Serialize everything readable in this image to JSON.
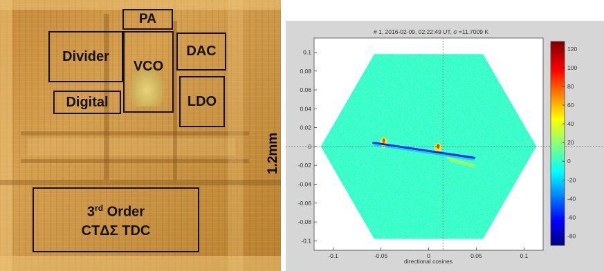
{
  "die_photo": {
    "blocks": [
      {
        "id": "pa",
        "label": "PA"
      },
      {
        "id": "divider",
        "label": "Divider"
      },
      {
        "id": "vco",
        "label": "VCO"
      },
      {
        "id": "dac",
        "label": "DAC"
      },
      {
        "id": "digital",
        "label": "Digital"
      },
      {
        "id": "ldo",
        "label": "LDO"
      },
      {
        "id": "tdc",
        "label_line1_prefix": "3",
        "label_line1_sup": "rd",
        "label_line1_suffix": " Order",
        "label_line2": "CTΔΣ TDC"
      }
    ],
    "dimension_label": "1.2mm"
  },
  "plot": {
    "title": "# 1, 2016-02-09, 02:22:49 UT, σ =11.7009 K",
    "xlabel": "directional cosines"
  },
  "chart_data": {
    "type": "heatmap",
    "title": "# 1, 2016-02-09, 02:22:49 UT, σ =11.7009 K",
    "xlabel": "directional cosines",
    "ylabel": "",
    "xlim": [
      -0.12,
      0.12
    ],
    "ylim": [
      -0.11,
      0.115
    ],
    "x_ticks": [
      "-0.1",
      "-0.05",
      "0",
      "0.05",
      "0.1"
    ],
    "x_tick_values": [
      -0.1,
      -0.05,
      0,
      0.05,
      0.1
    ],
    "y_ticks": [
      "0.1",
      "0.08",
      "0.06",
      "0.04",
      "0.02",
      "0",
      "-0.02",
      "-0.04",
      "-0.06",
      "-0.08",
      "-0.1"
    ],
    "y_tick_values": [
      0.1,
      0.08,
      0.06,
      0.04,
      0.02,
      0,
      -0.02,
      -0.04,
      -0.06,
      -0.08,
      -0.1
    ],
    "colorbar": {
      "range": [
        -90,
        128
      ],
      "ticks": [
        "120",
        "100",
        "80",
        "60",
        "40",
        "20",
        "0",
        "-20",
        "-40",
        "-60",
        "-80"
      ],
      "tick_values": [
        120,
        100,
        80,
        60,
        40,
        20,
        0,
        -20,
        -40,
        -60,
        -80
      ],
      "colormap": "jet"
    },
    "field_shape": "hexagon",
    "hexagon_vertices": [
      [
        -0.057,
        0.098
      ],
      [
        0.057,
        0.098
      ],
      [
        0.113,
        0
      ],
      [
        0.057,
        -0.098
      ],
      [
        -0.057,
        -0.098
      ],
      [
        -0.113,
        0
      ]
    ],
    "background_level": 2,
    "features": [
      {
        "type": "hot-spot",
        "x": -0.047,
        "y": 0.004,
        "level": 45
      },
      {
        "type": "hot-spot",
        "x": 0.01,
        "y": -0.002,
        "level": 50
      },
      {
        "type": "ridge",
        "x_start": -0.058,
        "y_start": 0.004,
        "x_end": 0.048,
        "y_end": -0.012,
        "level": -55
      },
      {
        "type": "ridge",
        "x_start": 0.02,
        "y_start": -0.012,
        "x_end": 0.048,
        "y_end": -0.02,
        "level": 25
      }
    ],
    "crosshair": {
      "x": 0.015,
      "y": 0.0
    },
    "grid": false,
    "colors": {
      "figure_bg": "#d6d6d6",
      "axes_bg": "#ffffff",
      "field": "#5fd8e4"
    }
  }
}
